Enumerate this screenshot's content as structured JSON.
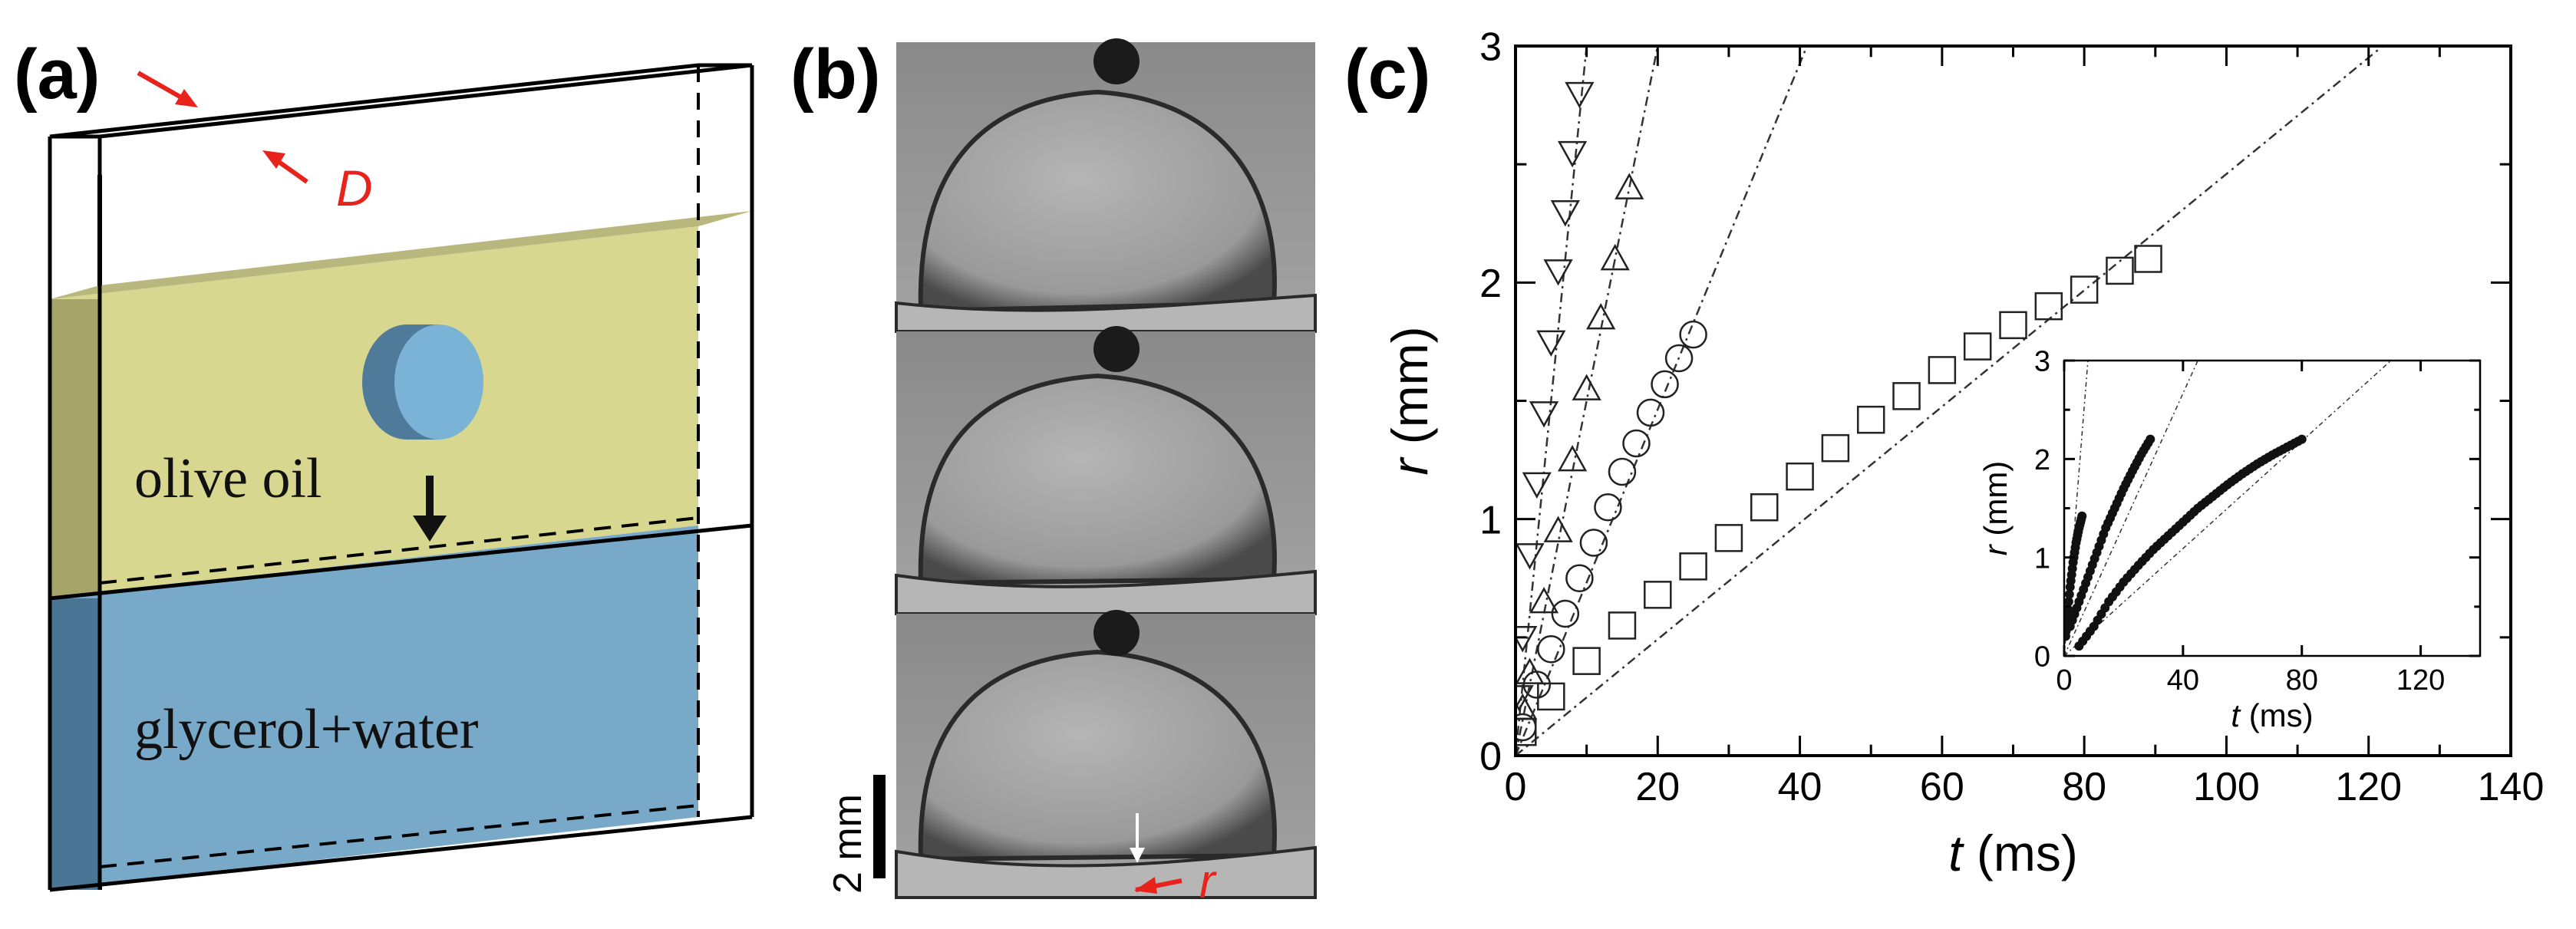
{
  "panels": {
    "a": {
      "label": "(a)",
      "oil_label": "olive oil",
      "water_label": "glycerol+water",
      "gap_symbol": "D",
      "colors": {
        "oil": "#d7d78f",
        "water": "#78a9c9",
        "arrow": "#e8231b"
      }
    },
    "b": {
      "label": "(b)",
      "scale_label": "2 mm",
      "radius_symbol": "r"
    },
    "c": {
      "label": "(c)"
    }
  },
  "chart_data": [
    {
      "type": "scatter",
      "xlabel": "t (ms)",
      "ylabel": "r (mm)",
      "xlim": [
        0,
        140
      ],
      "ylim": [
        0,
        3
      ],
      "xticks": [
        "0",
        "20",
        "40",
        "60",
        "80",
        "100",
        "120",
        "140"
      ],
      "yticks": [
        "0",
        "1",
        "2",
        "3"
      ],
      "series": [
        {
          "marker": "open-down-triangle",
          "t_end": 9,
          "r_end": 2.8,
          "t": [
            0.5,
            1,
            2,
            3,
            4,
            5,
            6,
            7,
            8,
            9
          ],
          "r": [
            0.25,
            0.5,
            0.85,
            1.15,
            1.45,
            1.75,
            2.05,
            2.3,
            2.55,
            2.8
          ],
          "fit_end": [
            10,
            3.0
          ]
        },
        {
          "marker": "open-up-triangle",
          "t_end": 16,
          "r_end": 2.4,
          "t": [
            1,
            2,
            4,
            6,
            8,
            10,
            12,
            14,
            16
          ],
          "r": [
            0.2,
            0.35,
            0.65,
            0.95,
            1.25,
            1.55,
            1.85,
            2.1,
            2.4
          ],
          "fit_end": [
            20,
            3.0
          ]
        },
        {
          "marker": "open-circle",
          "t_end": 25,
          "r_end": 1.78,
          "t": [
            1,
            3,
            5,
            7,
            9,
            11,
            13,
            15,
            17,
            19,
            21,
            23,
            25
          ],
          "r": [
            0.12,
            0.3,
            0.45,
            0.6,
            0.75,
            0.9,
            1.05,
            1.2,
            1.32,
            1.45,
            1.57,
            1.68,
            1.78
          ],
          "fit_end": [
            41,
            3.0
          ]
        },
        {
          "marker": "open-square",
          "t_end": 89,
          "r_end": 2.1,
          "t": [
            1,
            5,
            10,
            15,
            20,
            25,
            30,
            35,
            40,
            45,
            50,
            55,
            60,
            65,
            70,
            75,
            80,
            85,
            89
          ],
          "r": [
            0.1,
            0.25,
            0.4,
            0.55,
            0.68,
            0.8,
            0.92,
            1.05,
            1.18,
            1.3,
            1.42,
            1.52,
            1.63,
            1.73,
            1.82,
            1.9,
            1.97,
            2.05,
            2.1
          ],
          "fit_end": [
            122,
            3.0
          ]
        }
      ]
    },
    {
      "type": "scatter",
      "inset": true,
      "xlabel": "t (ms)",
      "ylabel": "r (mm)",
      "xlim": [
        0,
        140
      ],
      "ylim": [
        0,
        3
      ],
      "xticks": [
        "0",
        "40",
        "80",
        "120"
      ],
      "yticks": [
        "0",
        "1",
        "2",
        "3"
      ],
      "series": [
        {
          "marker": "filled",
          "t": [
            0.5,
            1,
            2,
            3,
            4,
            5,
            6
          ],
          "r": [
            0.2,
            0.4,
            0.7,
            0.95,
            1.15,
            1.3,
            1.42
          ],
          "fit_end": [
            8,
            3.0
          ]
        },
        {
          "marker": "filled",
          "t": [
            2,
            5,
            8,
            11,
            14,
            17,
            20,
            23,
            26,
            29
          ],
          "r": [
            0.3,
            0.55,
            0.8,
            1.05,
            1.3,
            1.5,
            1.7,
            1.88,
            2.05,
            2.2
          ],
          "fit_end": [
            45,
            3.0
          ]
        },
        {
          "marker": "filled",
          "t": [
            5,
            10,
            15,
            20,
            25,
            30,
            35,
            40,
            45,
            50,
            55,
            60,
            65,
            70,
            75,
            80
          ],
          "r": [
            0.1,
            0.3,
            0.55,
            0.75,
            0.92,
            1.08,
            1.22,
            1.36,
            1.5,
            1.62,
            1.74,
            1.85,
            1.95,
            2.04,
            2.12,
            2.2
          ],
          "fit_end": [
            110,
            3.0
          ]
        }
      ]
    }
  ]
}
